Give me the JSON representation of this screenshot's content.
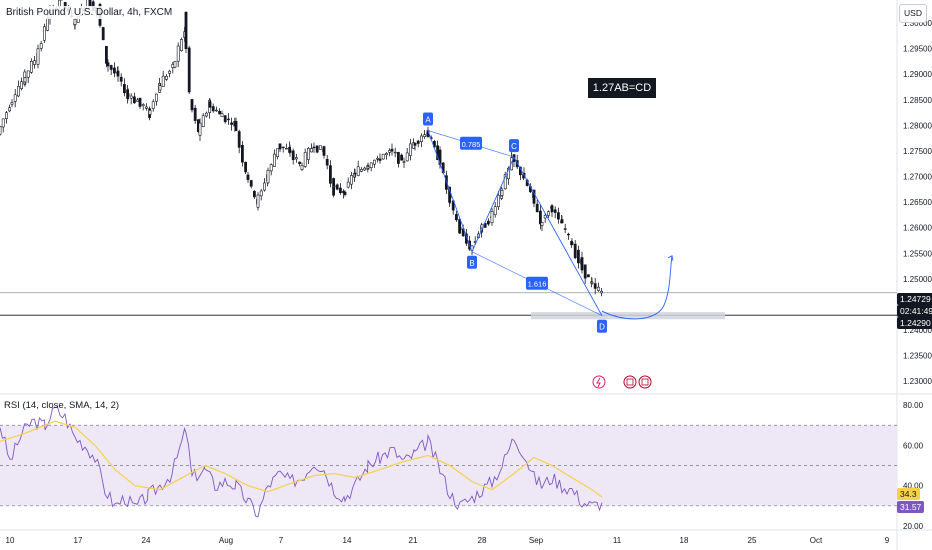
{
  "header": {
    "symbol_title": "British Pound / U.S. Dollar, 4h, FXCM",
    "currency_button": "USD"
  },
  "annotation": {
    "text": "1.27AB=CD ???"
  },
  "price_tags": {
    "last_price": "1.24729",
    "countdown": "02:41:49",
    "level_price": "1.24290"
  },
  "harmonic": {
    "points": [
      "A",
      "B",
      "C",
      "D"
    ],
    "ratio_bc": "0.785",
    "ratio_cd": "1.616"
  },
  "rsi_panel": {
    "title": "RSI (14, close, SMA, 14, 2)",
    "value_rsi": "31.57",
    "value_sma": "34.3"
  },
  "colors": {
    "bullish": "#26a69a",
    "bearish": "#131722",
    "pattern": "#2962ff",
    "rsi_line": "#7e57c2",
    "rsi_sma": "#f7d04a",
    "rsi_band": "#ede7f6"
  },
  "event_icons": [
    "lightning-icon",
    "calendar-icon",
    "calendar-icon"
  ],
  "chart_data": [
    {
      "type": "candlestick",
      "title": "British Pound / U.S. Dollar, 4h, FXCM",
      "ylabel": "USD",
      "y_ticks": [
        "1.30000",
        "1.29500",
        "1.29000",
        "1.28500",
        "1.28000",
        "1.27500",
        "1.27000",
        "1.26500",
        "1.26000",
        "1.25500",
        "1.25000",
        "1.24000",
        "1.23500",
        "1.23000"
      ],
      "x_ticks": [
        "10",
        "17",
        "24",
        "Aug",
        "7",
        "14",
        "21",
        "28",
        "Sep",
        "11",
        "18",
        "25",
        "Oct",
        "9"
      ],
      "ylim": [
        1.2275,
        1.3045
      ],
      "last_price": 1.24729,
      "support_level": 1.2429,
      "support_zone": [
        1.2421,
        1.2435
      ],
      "price_path": [
        [
          0,
          1.279
        ],
        [
          12,
          1.2845
        ],
        [
          25,
          1.289
        ],
        [
          38,
          1.2935
        ],
        [
          50,
          1.3015
        ],
        [
          62,
          1.3045
        ],
        [
          75,
          1.3
        ],
        [
          90,
          1.3045
        ],
        [
          100,
          1.3015
        ],
        [
          108,
          1.292
        ],
        [
          118,
          1.29
        ],
        [
          128,
          1.286
        ],
        [
          140,
          1.2845
        ],
        [
          150,
          1.2825
        ],
        [
          160,
          1.2875
        ],
        [
          175,
          1.292
        ],
        [
          186,
          1.2985
        ],
        [
          192,
          1.284
        ],
        [
          200,
          1.279
        ],
        [
          210,
          1.284
        ],
        [
          222,
          1.282
        ],
        [
          236,
          1.28
        ],
        [
          248,
          1.27
        ],
        [
          258,
          1.265
        ],
        [
          268,
          1.27
        ],
        [
          280,
          1.276
        ],
        [
          290,
          1.275
        ],
        [
          302,
          1.272
        ],
        [
          314,
          1.276
        ],
        [
          324,
          1.275
        ],
        [
          334,
          1.268
        ],
        [
          345,
          1.267
        ],
        [
          355,
          1.2705
        ],
        [
          368,
          1.272
        ],
        [
          380,
          1.2735
        ],
        [
          392,
          1.275
        ],
        [
          404,
          1.273
        ],
        [
          415,
          1.2765
        ],
        [
          428,
          1.2785
        ],
        [
          440,
          1.274
        ],
        [
          450,
          1.266
        ],
        [
          460,
          1.26
        ],
        [
          472,
          1.256
        ],
        [
          482,
          1.26
        ],
        [
          492,
          1.262
        ],
        [
          502,
          1.267
        ],
        [
          514,
          1.2735
        ],
        [
          524,
          1.27
        ],
        [
          534,
          1.266
        ],
        [
          542,
          1.261
        ],
        [
          552,
          1.264
        ],
        [
          562,
          1.261
        ],
        [
          572,
          1.257
        ],
        [
          582,
          1.253
        ],
        [
          592,
          1.249
        ],
        [
          602,
          1.2473
        ]
      ],
      "pattern_points": [
        {
          "label": "A",
          "x": 428,
          "price": 1.279
        },
        {
          "label": "B",
          "x": 472,
          "price": 1.2553
        },
        {
          "label": "C",
          "x": 514,
          "price": 1.2738
        },
        {
          "label": "D",
          "x": 602,
          "price": 1.2428
        }
      ],
      "projection_target": 1.2545
    },
    {
      "type": "line",
      "title": "RSI (14, close, SMA, 14, 2)",
      "y_ticks": [
        "80.00",
        "60.00",
        "40.00",
        "20.00"
      ],
      "ylim": [
        18,
        85
      ],
      "band": [
        30,
        70
      ],
      "mid": 50,
      "series": [
        {
          "name": "RSI",
          "values": [
            [
              0,
              70
            ],
            [
              10,
              52
            ],
            [
              22,
              66
            ],
            [
              32,
              72
            ],
            [
              45,
              70
            ],
            [
              55,
              78
            ],
            [
              65,
              74
            ],
            [
              75,
              64
            ],
            [
              85,
              60
            ],
            [
              95,
              54
            ],
            [
              105,
              38
            ],
            [
              115,
              30
            ],
            [
              125,
              34
            ],
            [
              135,
              29
            ],
            [
              148,
              35
            ],
            [
              160,
              40
            ],
            [
              172,
              46
            ],
            [
              186,
              68
            ],
            [
              192,
              44
            ],
            [
              205,
              48
            ],
            [
              215,
              40
            ],
            [
              225,
              42
            ],
            [
              236,
              40
            ],
            [
              248,
              32
            ],
            [
              258,
              26
            ],
            [
              268,
              40
            ],
            [
              280,
              46
            ],
            [
              290,
              42
            ],
            [
              302,
              44
            ],
            [
              314,
              52
            ],
            [
              324,
              48
            ],
            [
              334,
              38
            ],
            [
              345,
              34
            ],
            [
              355,
              40
            ],
            [
              368,
              50
            ],
            [
              380,
              54
            ],
            [
              392,
              58
            ],
            [
              404,
              52
            ],
            [
              415,
              56
            ],
            [
              428,
              62
            ],
            [
              440,
              48
            ],
            [
              450,
              36
            ],
            [
              460,
              30
            ],
            [
              472,
              34
            ],
            [
              482,
              38
            ],
            [
              492,
              42
            ],
            [
              502,
              50
            ],
            [
              514,
              64
            ],
            [
              524,
              56
            ],
            [
              534,
              44
            ],
            [
              542,
              40
            ],
            [
              552,
              44
            ],
            [
              562,
              40
            ],
            [
              572,
              38
            ],
            [
              582,
              32
            ],
            [
              592,
              30
            ],
            [
              602,
              31.57
            ]
          ]
        },
        {
          "name": "SMA",
          "values": [
            [
              0,
              62
            ],
            [
              25,
              66
            ],
            [
              55,
              72
            ],
            [
              75,
              69
            ],
            [
              95,
              60
            ],
            [
              115,
              48
            ],
            [
              135,
              40
            ],
            [
              160,
              38
            ],
            [
              186,
              45
            ],
            [
              205,
              50
            ],
            [
              225,
              46
            ],
            [
              248,
              40
            ],
            [
              268,
              37
            ],
            [
              290,
              41
            ],
            [
              314,
              45
            ],
            [
              334,
              46
            ],
            [
              355,
              44
            ],
            [
              380,
              48
            ],
            [
              404,
              52
            ],
            [
              428,
              55
            ],
            [
              450,
              50
            ],
            [
              472,
              42
            ],
            [
              492,
              38
            ],
            [
              514,
              46
            ],
            [
              534,
              54
            ],
            [
              552,
              50
            ],
            [
              572,
              44
            ],
            [
              592,
              38
            ],
            [
              602,
              34.3
            ]
          ]
        }
      ]
    }
  ]
}
